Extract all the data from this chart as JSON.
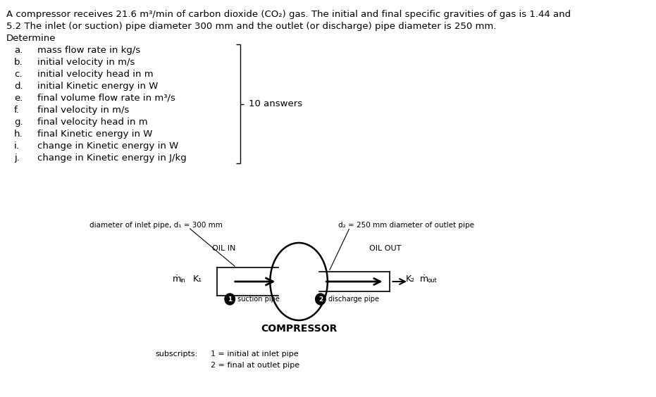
{
  "line1": "A compressor receives 21.6 m³/min of carbon dioxide (CO₂) gas. The initial and final specific gravities of gas is 1.44 and",
  "line2": "5.2 The inlet (or suction) pipe diameter 300 mm and the outlet (or discharge) pipe diameter is 250 mm.",
  "line3": "Determine",
  "items": [
    [
      "a.",
      "mass flow rate in kg/s"
    ],
    [
      "b.",
      "initial velocity in m/s"
    ],
    [
      "c.",
      "initial velocity head in m"
    ],
    [
      "d.",
      "initial Kinetic energy in W"
    ],
    [
      "e.",
      "final volume flow rate in m³/s"
    ],
    [
      "f.",
      "final velocity in m/s"
    ],
    [
      "g.",
      "final velocity head in m"
    ],
    [
      "h.",
      "final Kinetic energy in W"
    ],
    [
      "i.",
      "change in Kinetic energy in W"
    ],
    [
      "j.",
      "change in Kinetic energy in J/kg"
    ]
  ],
  "bracket_label": "10 answers",
  "diagram_label_inlet": "diameter of inlet pipe, d₁ = 300 mm",
  "diagram_label_outlet": "d₂ = 250 mm diameter of outlet pipe",
  "oil_in": "OIL IN",
  "oil_out": "OIL OUT",
  "suction_label": "suction pipe",
  "discharge_label": "discharge pipe",
  "compressor_label": "COMPRESSOR",
  "subscripts_label": "subscripts:",
  "sub1": "1 = initial at inlet pipe",
  "sub2": "2 = final at outlet pipe",
  "bg_color": "#ffffff",
  "text_color": "#000000",
  "font_size_main": 9.5,
  "font_size_items": 9.5,
  "font_size_diagram": 7.5,
  "font_size_compressor": 10
}
